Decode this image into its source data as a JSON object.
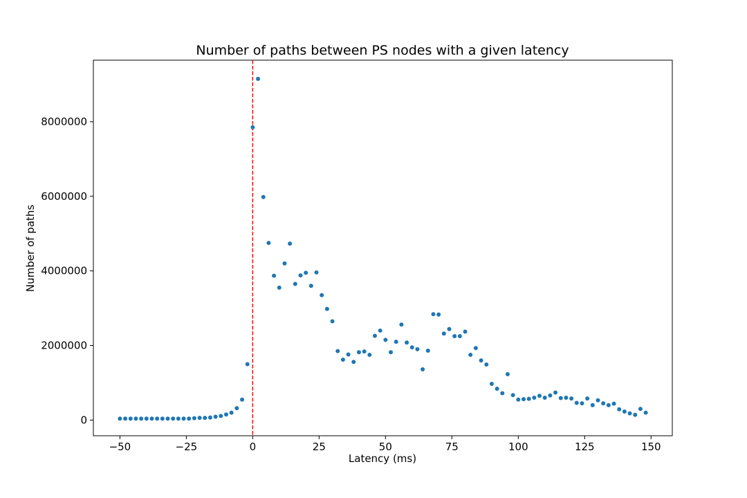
{
  "chart_data": {
    "type": "scatter",
    "title": "Number of paths between PS nodes with a given latency",
    "xlabel": "Latency (ms)",
    "ylabel": "Number of paths",
    "xlim": [
      -60,
      158
    ],
    "ylim": [
      -420000,
      9650000
    ],
    "xticks": [
      -50,
      -25,
      0,
      25,
      50,
      75,
      100,
      125,
      150
    ],
    "xtick_labels": [
      "−50",
      "−25",
      "0",
      "25",
      "50",
      "75",
      "100",
      "125",
      "150"
    ],
    "yticks": [
      0,
      2000000,
      4000000,
      6000000,
      8000000
    ],
    "ytick_labels": [
      "0",
      "2000000",
      "4000000",
      "6000000",
      "8000000"
    ],
    "grid": false,
    "marker_color": "#1f77b4",
    "reference_line": {
      "x": 0,
      "color": "#ff0000",
      "style": "dashed"
    },
    "series": [
      {
        "x": [
          -50,
          -48,
          -46,
          -44,
          -42,
          -40,
          -38,
          -36,
          -34,
          -32,
          -30,
          -28,
          -26,
          -24,
          -22,
          -20,
          -18,
          -16,
          -14,
          -12,
          -10,
          -8,
          -6,
          -4,
          -2,
          0,
          2,
          4,
          6,
          8,
          10,
          12,
          14,
          16,
          18,
          20,
          22,
          24,
          26,
          28,
          30,
          32,
          34,
          36,
          38,
          40,
          42,
          44,
          46,
          48,
          50,
          52,
          54,
          56,
          58,
          60,
          62,
          64,
          66,
          68,
          70,
          72,
          74,
          76,
          78,
          80,
          82,
          84,
          86,
          88,
          90,
          92,
          94,
          96,
          98,
          100,
          102,
          104,
          106,
          108,
          110,
          112,
          114,
          116,
          118,
          120,
          122,
          124,
          126,
          128,
          130,
          132,
          134,
          136,
          138,
          140,
          142,
          144,
          146,
          148
        ],
        "y": [
          40000,
          40000,
          40000,
          40000,
          40000,
          40000,
          40000,
          40000,
          40000,
          40000,
          40000,
          40000,
          40000,
          40000,
          50000,
          60000,
          60000,
          70000,
          90000,
          110000,
          150000,
          200000,
          320000,
          550000,
          1500000,
          7850000,
          9150000,
          5980000,
          4750000,
          3870000,
          3550000,
          4200000,
          4730000,
          3650000,
          3880000,
          3950000,
          3600000,
          3960000,
          3350000,
          2980000,
          2650000,
          1850000,
          1620000,
          1760000,
          1560000,
          1820000,
          1840000,
          1750000,
          2260000,
          2400000,
          2150000,
          1820000,
          2100000,
          2560000,
          2080000,
          1950000,
          1900000,
          1360000,
          1860000,
          2840000,
          2830000,
          2320000,
          2440000,
          2250000,
          2250000,
          2370000,
          1750000,
          1930000,
          1600000,
          1490000,
          970000,
          840000,
          720000,
          1230000,
          670000,
          550000,
          560000,
          570000,
          600000,
          650000,
          600000,
          660000,
          740000,
          590000,
          600000,
          580000,
          460000,
          450000,
          580000,
          400000,
          530000,
          450000,
          400000,
          440000,
          290000,
          230000,
          180000,
          140000,
          300000,
          200000
        ]
      }
    ]
  }
}
